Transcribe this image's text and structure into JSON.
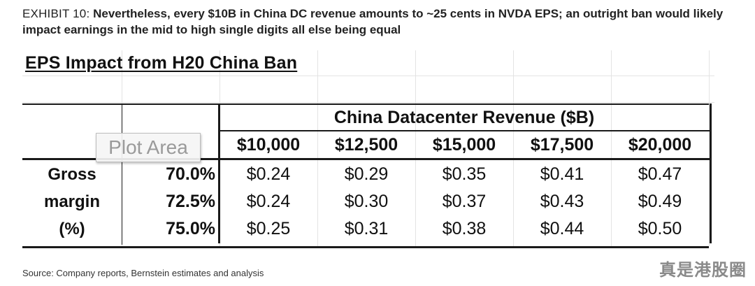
{
  "exhibit": {
    "label": "EXHIBIT 10:",
    "headline": "Nevertheless, every $10B in China DC revenue amounts to ~25 cents in NVDA EPS; an outright ban would likely impact earnings in the mid to high single digits all else being equal"
  },
  "sheet": {
    "title": "EPS Impact from H20 China Ban",
    "plot_area_tooltip": "Plot Area"
  },
  "table": {
    "column_group_header": "China Datacenter Revenue ($B)",
    "columns": [
      "$10,000",
      "$12,500",
      "$15,000",
      "$17,500",
      "$20,000"
    ],
    "row_group_label": [
      "Gross",
      "margin",
      "(%)"
    ],
    "rows": [
      {
        "margin": "70.0%",
        "values": [
          "$0.24",
          "$0.29",
          "$0.35",
          "$0.41",
          "$0.47"
        ]
      },
      {
        "margin": "72.5%",
        "values": [
          "$0.24",
          "$0.30",
          "$0.37",
          "$0.43",
          "$0.49"
        ]
      },
      {
        "margin": "75.0%",
        "values": [
          "$0.25",
          "$0.31",
          "$0.38",
          "$0.44",
          "$0.50"
        ]
      }
    ]
  },
  "footer": {
    "source": "Source: Company reports, Bernstein estimates and analysis",
    "watermark": "真是港股圈"
  }
}
